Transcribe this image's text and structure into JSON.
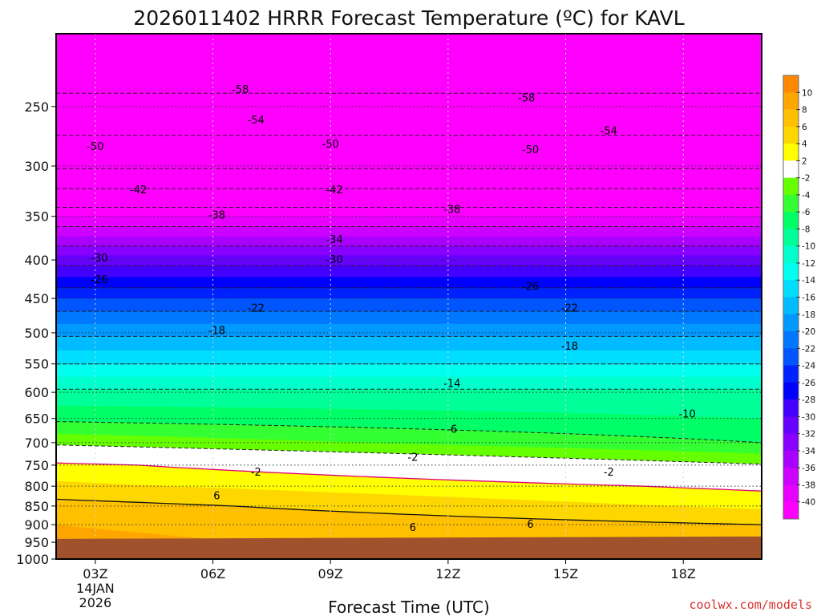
{
  "chart_data": {
    "type": "heatmap",
    "title": "2026011402 HRRR Forecast Temperature (ºC) for KAVL",
    "xlabel": "Forecast Time (UTC)",
    "ylabel": "",
    "x_ticks": [
      "03Z",
      "06Z",
      "09Z",
      "12Z",
      "15Z",
      "18Z"
    ],
    "x_tick_hours": [
      3,
      6,
      9,
      12,
      15,
      18
    ],
    "x_date_label": [
      "14JAN",
      "2026"
    ],
    "x_range_hours": [
      2,
      20
    ],
    "y_ticks": [
      250,
      300,
      350,
      400,
      450,
      500,
      550,
      600,
      650,
      700,
      750,
      800,
      850,
      900,
      950,
      1000
    ],
    "y_range_hPa": [
      1000,
      200
    ],
    "y_scale": "log",
    "ground_color": "#a0522d",
    "surface_pressure_hPa": 940,
    "levels": [
      -40,
      -38,
      -36,
      -34,
      -32,
      -30,
      -28,
      -26,
      -24,
      -22,
      -20,
      -18,
      -16,
      -14,
      -12,
      -10,
      -8,
      -6,
      -4,
      -2,
      2,
      4,
      6,
      8,
      10
    ],
    "colorbar_colors": [
      "#ff00ff",
      "#e600ff",
      "#cc00ff",
      "#aa00ff",
      "#8800ff",
      "#6600ff",
      "#4400ff",
      "#0000ff",
      "#0022ff",
      "#0055ff",
      "#0077ff",
      "#0099ff",
      "#00bbff",
      "#00ddff",
      "#00ffee",
      "#00ffcc",
      "#00ff99",
      "#00ff66",
      "#33ff33",
      "#66ff00",
      "#ffffff",
      "#ffff00",
      "#ffd700",
      "#ffc000",
      "#ffa500",
      "#ff8800"
    ],
    "contour_labels": [
      {
        "text": "-58",
        "x": 6.7,
        "p": 237
      },
      {
        "text": "-58",
        "x": 14.0,
        "p": 243
      },
      {
        "text": "-54",
        "x": 7.1,
        "p": 260
      },
      {
        "text": "-54",
        "x": 16.1,
        "p": 269
      },
      {
        "text": "-50",
        "x": 3.0,
        "p": 282
      },
      {
        "text": "-50",
        "x": 9.0,
        "p": 280
      },
      {
        "text": "-50",
        "x": 14.1,
        "p": 285
      },
      {
        "text": "-42",
        "x": 4.1,
        "p": 322
      },
      {
        "text": "-42",
        "x": 9.1,
        "p": 322
      },
      {
        "text": "-38",
        "x": 6.1,
        "p": 348
      },
      {
        "text": "-38",
        "x": 12.1,
        "p": 342
      },
      {
        "text": "-34",
        "x": 9.1,
        "p": 375
      },
      {
        "text": "-30",
        "x": 3.1,
        "p": 397
      },
      {
        "text": "-30",
        "x": 9.1,
        "p": 399
      },
      {
        "text": "-26",
        "x": 3.1,
        "p": 424
      },
      {
        "text": "-26",
        "x": 14.1,
        "p": 433
      },
      {
        "text": "-22",
        "x": 7.1,
        "p": 463
      },
      {
        "text": "-22",
        "x": 15.1,
        "p": 463
      },
      {
        "text": "-18",
        "x": 6.1,
        "p": 496
      },
      {
        "text": "-18",
        "x": 15.1,
        "p": 520
      },
      {
        "text": "-14",
        "x": 12.1,
        "p": 583
      },
      {
        "text": "-10",
        "x": 18.1,
        "p": 640
      },
      {
        "text": "-6",
        "x": 12.1,
        "p": 671
      },
      {
        "text": "-2",
        "x": 11.1,
        "p": 731
      },
      {
        "text": "-2",
        "x": 7.1,
        "p": 765
      },
      {
        "text": "-2",
        "x": 16.1,
        "p": 765
      },
      {
        "text": "6",
        "x": 6.1,
        "p": 823
      },
      {
        "text": "6",
        "x": 14.1,
        "p": 898
      },
      {
        "text": "6",
        "x": 11.1,
        "p": 906
      }
    ]
  },
  "credit": "coolwx.com/models"
}
